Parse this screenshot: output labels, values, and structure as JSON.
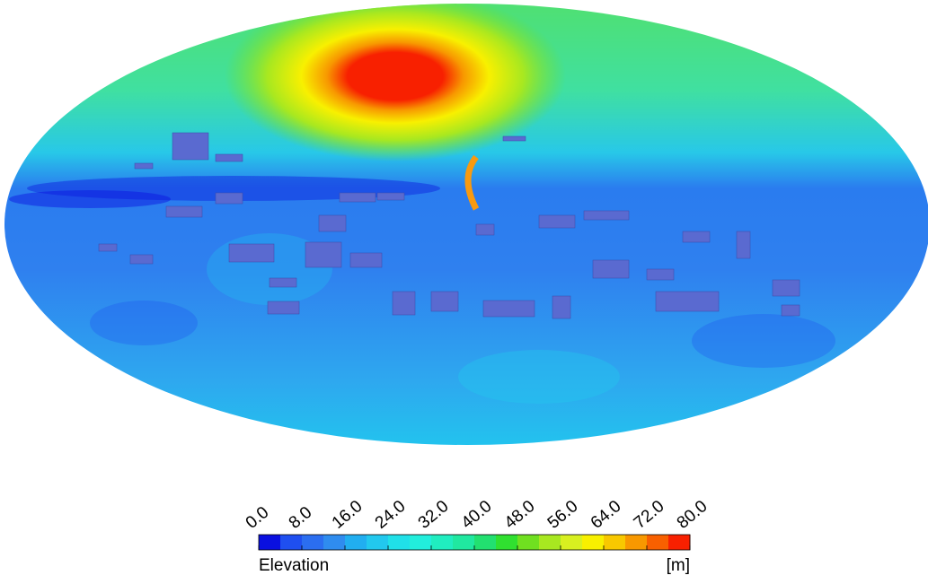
{
  "colorbar": {
    "label": "Elevation",
    "unit": "[m]",
    "lim": [
      0,
      80
    ],
    "ticks": [
      {
        "value": 0,
        "label": "0.0"
      },
      {
        "value": 8,
        "label": "8.0"
      },
      {
        "value": 16,
        "label": "16.0"
      },
      {
        "value": 24,
        "label": "24.0"
      },
      {
        "value": 32,
        "label": "32.0"
      },
      {
        "value": 40,
        "label": "40.0"
      },
      {
        "value": 48,
        "label": "48.0"
      },
      {
        "value": 56,
        "label": "56.0"
      },
      {
        "value": 64,
        "label": "64.0"
      },
      {
        "value": 72,
        "label": "72.0"
      },
      {
        "value": 80,
        "label": "80.0"
      }
    ],
    "colors": [
      "#0a10e0",
      "#1f4ff0",
      "#2b6ef0",
      "#2f8cef",
      "#21aef0",
      "#22c8ee",
      "#20e0e8",
      "#22eedc",
      "#20edc0",
      "#20e8a0",
      "#22e070",
      "#30e030",
      "#70e020",
      "#a8e820",
      "#d8f020",
      "#f8f000",
      "#f8c800",
      "#f89800",
      "#f86000",
      "#f82000"
    ]
  }
}
